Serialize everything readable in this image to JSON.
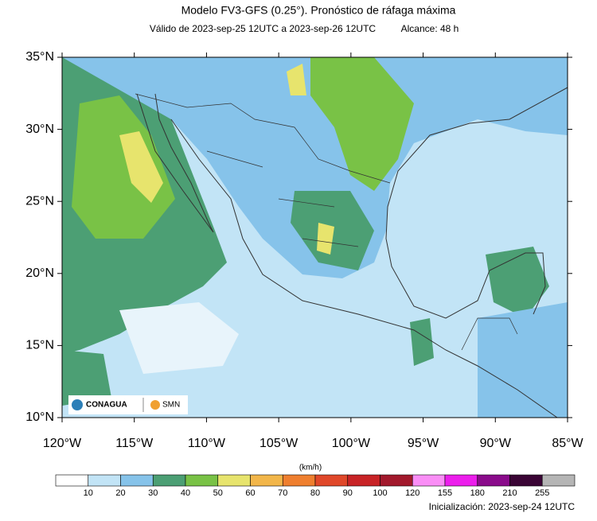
{
  "header": {
    "title": "Modelo FV3-GFS (0.25°). Pronóstico de ráfaga máxima",
    "subtitle": "Válido de 2023-sep-25 12UTC a 2023-sep-26 12UTC",
    "range": "Alcance: 48 h"
  },
  "map": {
    "lat_labels": [
      "35°N",
      "30°N",
      "25°N",
      "20°N",
      "15°N",
      "10°N"
    ],
    "lon_labels": [
      "120°W",
      "115°W",
      "110°W",
      "105°W",
      "100°W",
      "95°W",
      "90°W",
      "85°W"
    ],
    "logos": [
      "CONAGUA",
      "SMN"
    ]
  },
  "colorbar": {
    "units": "(km/h)",
    "levels": [
      10,
      20,
      30,
      40,
      50,
      60,
      70,
      80,
      90,
      100,
      120,
      155,
      180,
      210,
      255
    ],
    "colors": [
      "#ffffff",
      "#c2e4f6",
      "#86c3ea",
      "#4c9f74",
      "#79c246",
      "#e7e46d",
      "#f2b64a",
      "#ef7f2f",
      "#e0482a",
      "#c82326",
      "#a2192c",
      "#fa8ef6",
      "#ec1eec",
      "#8a0b8b",
      "#3a0535",
      "#b5b5b5",
      "#3a3a3a"
    ]
  },
  "footer": "Inicialización: 2023-sep-24 12UTC"
}
